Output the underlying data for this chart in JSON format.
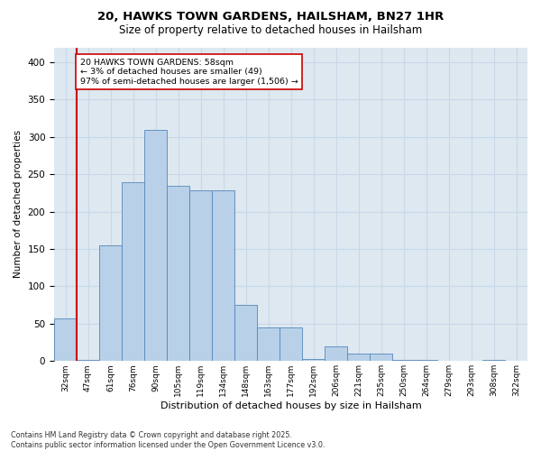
{
  "title_line1": "20, HAWKS TOWN GARDENS, HAILSHAM, BN27 1HR",
  "title_line2": "Size of property relative to detached houses in Hailsham",
  "xlabel": "Distribution of detached houses by size in Hailsham",
  "ylabel": "Number of detached properties",
  "annotation_title": "20 HAWKS TOWN GARDENS: 58sqm",
  "annotation_line2": "← 3% of detached houses are smaller (49)",
  "annotation_line3": "97% of semi-detached houses are larger (1,506) →",
  "vline_bin_index": 1,
  "bin_labels": [
    "32sqm",
    "47sqm",
    "61sqm",
    "76sqm",
    "90sqm",
    "105sqm",
    "119sqm",
    "134sqm",
    "148sqm",
    "163sqm",
    "177sqm",
    "192sqm",
    "206sqm",
    "221sqm",
    "235sqm",
    "250sqm",
    "264sqm",
    "279sqm",
    "293sqm",
    "308sqm",
    "322sqm"
  ],
  "bar_values": [
    57,
    2,
    155,
    240,
    310,
    235,
    228,
    228,
    75,
    45,
    45,
    3,
    20,
    10,
    10,
    2,
    2,
    0,
    0,
    2,
    0
  ],
  "bar_color": "#b8d0e8",
  "bar_edge_color": "#5588bb",
  "vline_color": "#cc0000",
  "annotation_box_edge_color": "#cc0000",
  "annotation_box_face_color": "#ffffff",
  "grid_color": "#c8d8e8",
  "background_color": "#dde8f0",
  "footer_line1": "Contains HM Land Registry data © Crown copyright and database right 2025.",
  "footer_line2": "Contains public sector information licensed under the Open Government Licence v3.0.",
  "ylim": [
    0,
    420
  ],
  "yticks": [
    0,
    50,
    100,
    150,
    200,
    250,
    300,
    350,
    400
  ]
}
